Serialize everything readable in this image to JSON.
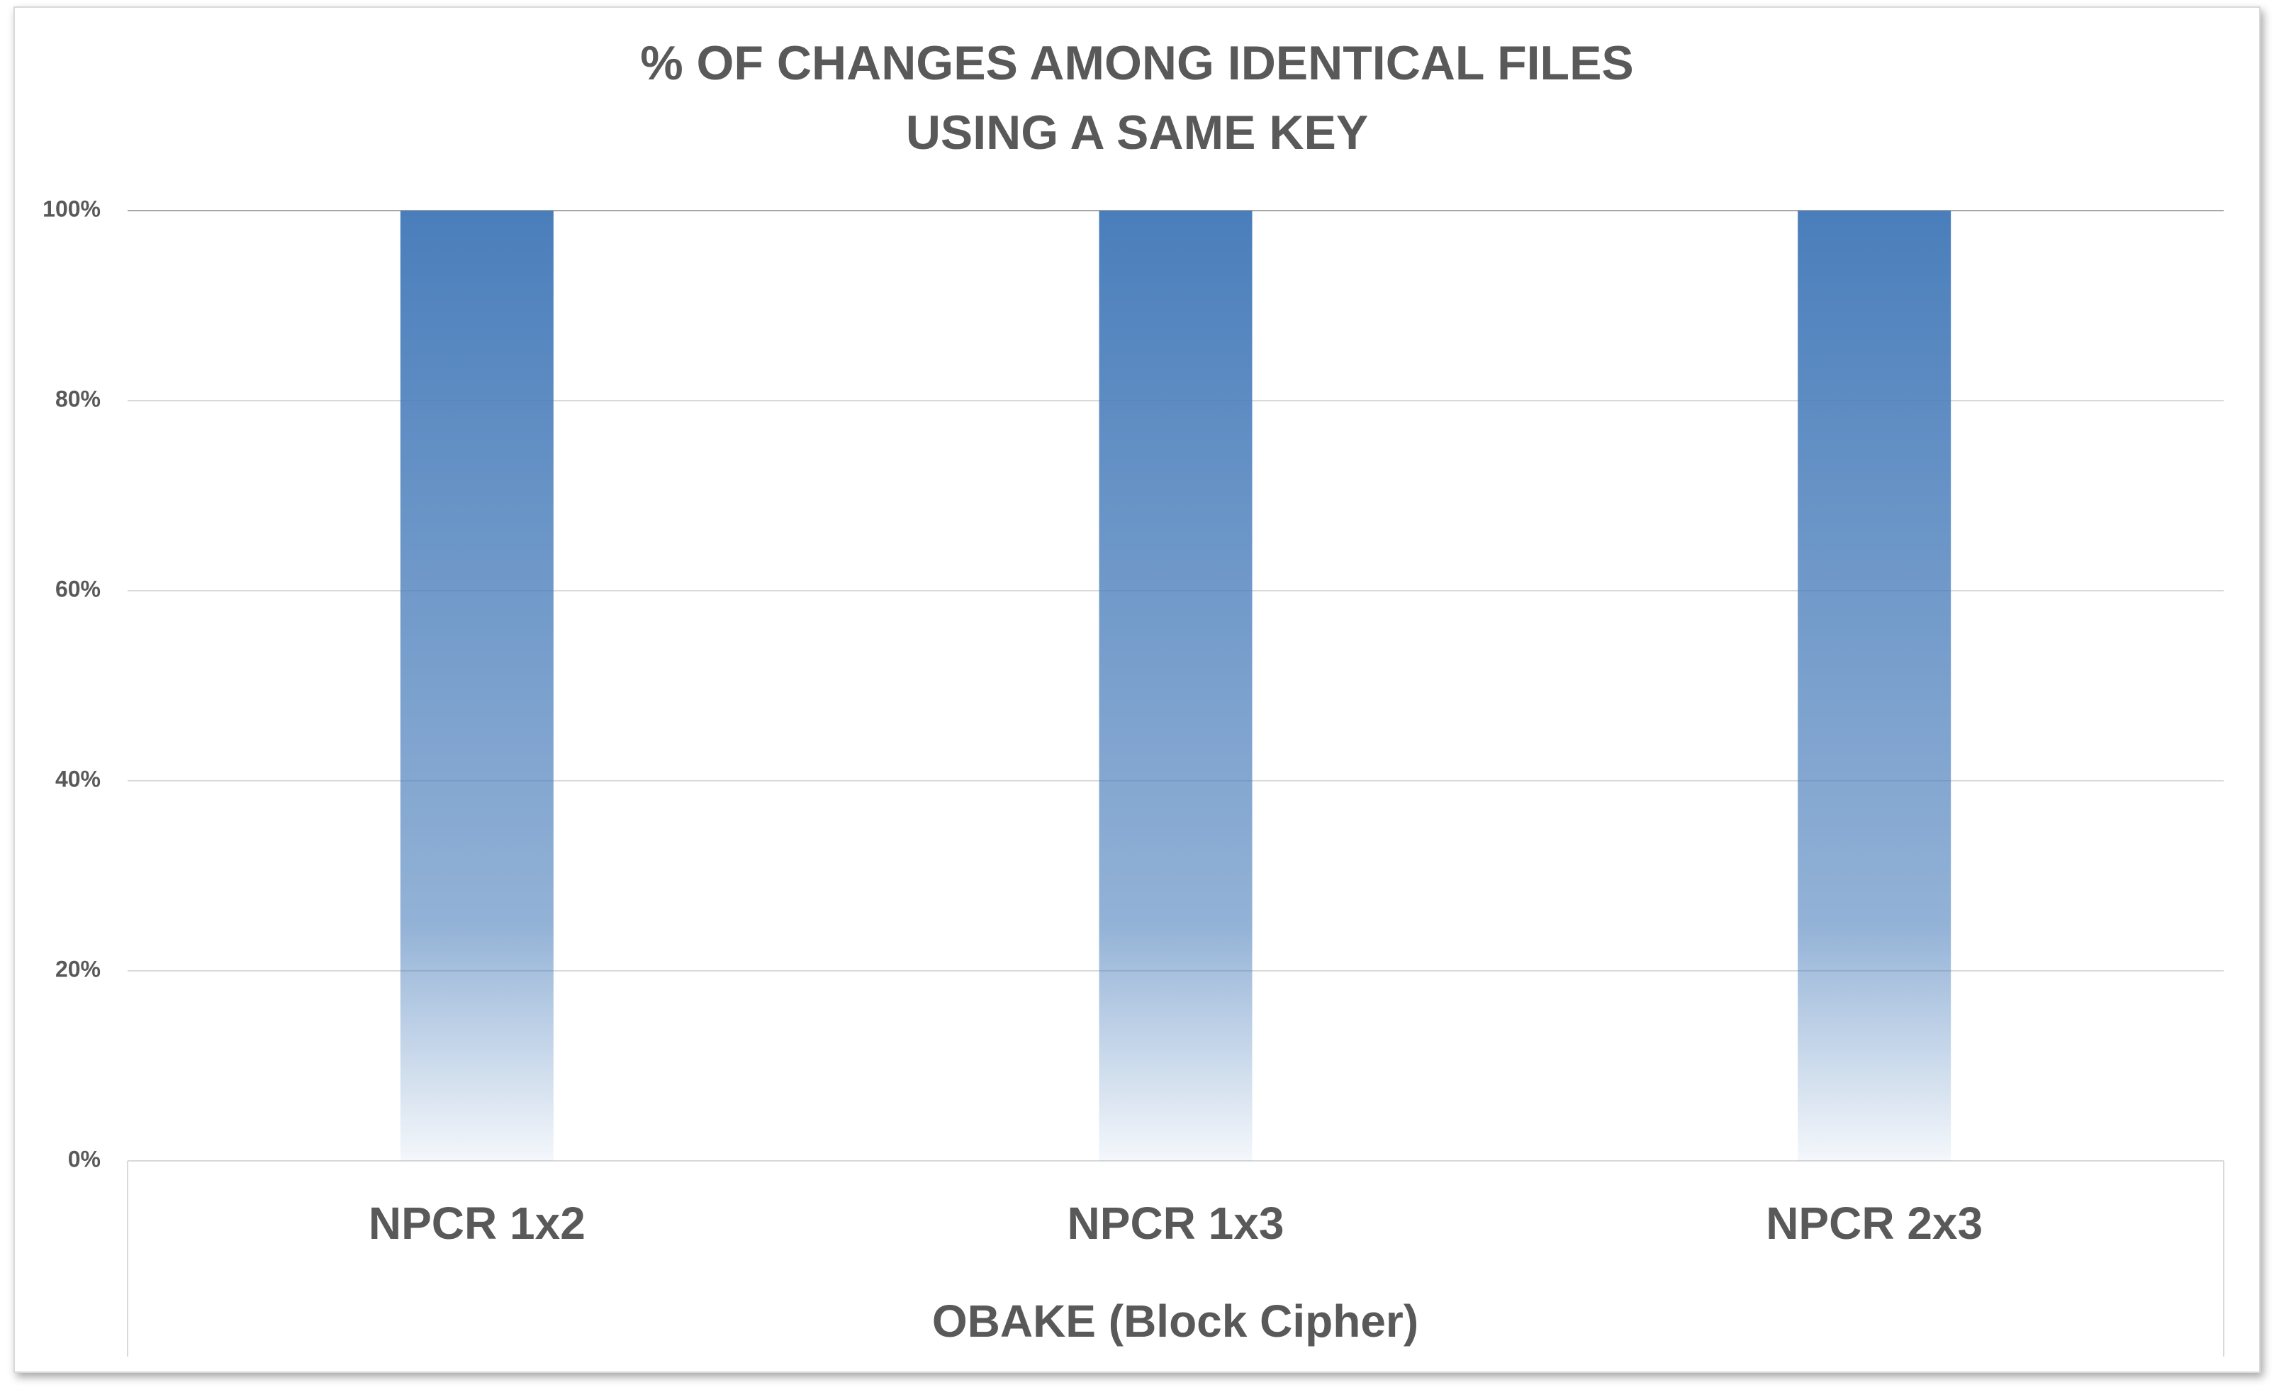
{
  "chart_data": {
    "type": "bar",
    "title": [
      "% OF CHANGES AMONG IDENTICAL FILES",
      "USING A SAME KEY"
    ],
    "categories": [
      "NPCR 1x2",
      "NPCR 1x3",
      "NPCR 2x3"
    ],
    "values": [
      100,
      100,
      100
    ],
    "color": "#4a7ebb",
    "x_group_label": "OBAKE (Block Cipher)",
    "ylim": [
      0,
      100
    ],
    "yticks": [
      {
        "value": 0,
        "label": "0%"
      },
      {
        "value": 20,
        "label": "20%"
      },
      {
        "value": 40,
        "label": "40%"
      },
      {
        "value": 60,
        "label": "60%"
      },
      {
        "value": 80,
        "label": "80%"
      },
      {
        "value": 100,
        "label": "100%"
      }
    ],
    "grid": true
  }
}
